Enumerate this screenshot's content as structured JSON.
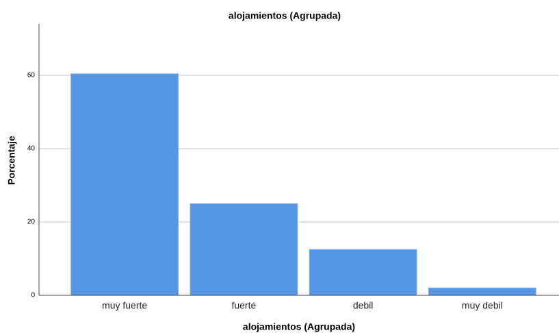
{
  "chart_data": {
    "type": "bar",
    "title": "alojamientos (Agrupada)",
    "x_label": "alojamientos (Agrupada)",
    "y_label": "Porcentaje",
    "categories": [
      "muy fuerte",
      "fuerte",
      "debil",
      "muy debil"
    ],
    "values": [
      60.4,
      25,
      12.5,
      2
    ],
    "color": "#5596e6",
    "ylim": [
      0,
      74
    ],
    "yticks": [
      0,
      20,
      40,
      60
    ],
    "grid": true
  }
}
